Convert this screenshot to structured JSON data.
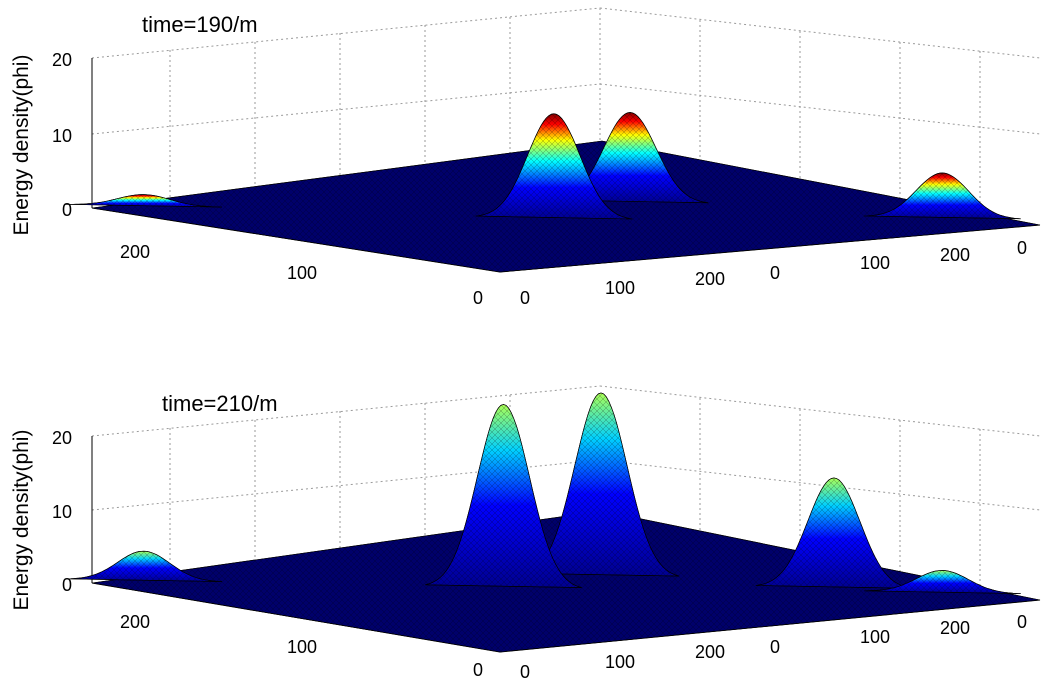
{
  "chart_data": [
    {
      "type": "surface",
      "title": "time=190/m",
      "zlabel": "Energy density(phi)",
      "zlim": [
        0,
        20
      ],
      "z_ticks": [
        "0",
        "10",
        "20"
      ],
      "y_ticks": [
        "0",
        "100",
        "200"
      ],
      "x_ticks": [
        "0",
        "100",
        "200"
      ],
      "right_y_ticks": [
        "0",
        "100",
        "200"
      ],
      "extra_right_tick": "0",
      "colormap": [
        "#00008f",
        "#0000ff",
        "#00ffff",
        "#ffff00",
        "#ff0000",
        "#800000"
      ],
      "peaks": [
        {
          "x": 120,
          "y": 125,
          "height": 14
        },
        {
          "x": 175,
          "y": 150,
          "height": 12
        },
        {
          "x": 240,
          "y": 40,
          "height": 6
        },
        {
          "x": 20,
          "y": 250,
          "height": 1.5
        }
      ]
    },
    {
      "type": "surface",
      "title": "time=210/m",
      "zlabel": "Energy density(phi)",
      "zlim": [
        0,
        25
      ],
      "z_ticks": [
        "0",
        "10",
        "20"
      ],
      "y_ticks": [
        "0",
        "100",
        "200"
      ],
      "x_ticks": [
        "0",
        "100",
        "200"
      ],
      "right_y_ticks": [
        "0",
        "100",
        "200"
      ],
      "extra_right_tick": "0",
      "colormap": [
        "#00008f",
        "#0000ff",
        "#00ffff",
        "#ffff00",
        "#ff0000",
        "#800000"
      ],
      "peaks": [
        {
          "x": 115,
          "y": 150,
          "height": 25
        },
        {
          "x": 165,
          "y": 155,
          "height": 25
        },
        {
          "x": 215,
          "y": 75,
          "height": 15
        },
        {
          "x": 20,
          "y": 250,
          "height": 4
        },
        {
          "x": 240,
          "y": 40,
          "height": 3
        }
      ]
    }
  ]
}
